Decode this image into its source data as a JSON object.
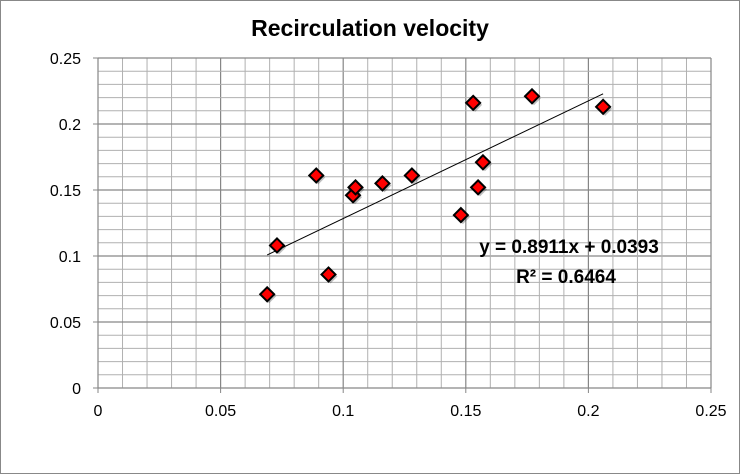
{
  "chart_data": {
    "type": "scatter",
    "title": "Recirculation velocity",
    "xlabel": "",
    "ylabel": "",
    "xlim": [
      0,
      0.25
    ],
    "ylim": [
      0,
      0.25
    ],
    "x_ticks": [
      "0",
      "0.05",
      "0.1",
      "0.15",
      "0.2",
      "0.25"
    ],
    "y_ticks": [
      "0",
      "0.05",
      "0.1",
      "0.15",
      "0.2",
      "0.25"
    ],
    "grid": {
      "major": true,
      "minor": true
    },
    "legend": "none",
    "marker": {
      "shape": "diamond",
      "color": "#ff0000",
      "edge": "#000000"
    },
    "points": [
      {
        "x": 0.069,
        "y": 0.071
      },
      {
        "x": 0.073,
        "y": 0.108
      },
      {
        "x": 0.089,
        "y": 0.161
      },
      {
        "x": 0.094,
        "y": 0.086
      },
      {
        "x": 0.104,
        "y": 0.146
      },
      {
        "x": 0.105,
        "y": 0.152
      },
      {
        "x": 0.116,
        "y": 0.155
      },
      {
        "x": 0.128,
        "y": 0.161
      },
      {
        "x": 0.148,
        "y": 0.131
      },
      {
        "x": 0.153,
        "y": 0.216
      },
      {
        "x": 0.155,
        "y": 0.152
      },
      {
        "x": 0.157,
        "y": 0.171
      },
      {
        "x": 0.177,
        "y": 0.221
      },
      {
        "x": 0.206,
        "y": 0.213
      }
    ],
    "trendline": {
      "type": "linear",
      "slope": 0.8911,
      "intercept": 0.0393,
      "x_range": [
        0.069,
        0.206
      ],
      "color": "#000000"
    },
    "annotations": {
      "equation": "y = 0.8911x + 0.0393",
      "r_squared": "R² = 0.6464"
    }
  }
}
